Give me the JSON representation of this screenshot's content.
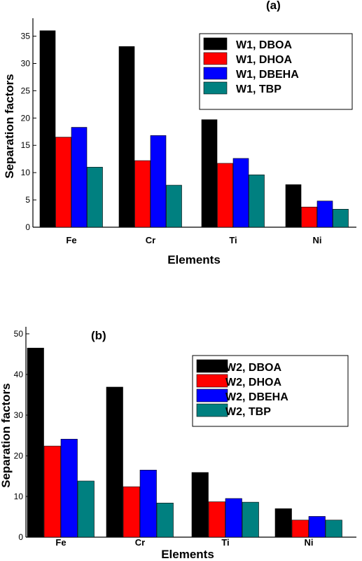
{
  "chart_data": [
    {
      "type": "bar",
      "panel_label": "(a)",
      "xlabel": "Elements",
      "ylabel": "Separation factors",
      "categories": [
        "Fe",
        "Cr",
        "Ti",
        "Ni"
      ],
      "ylim": [
        0,
        37
      ],
      "yticks": [
        0,
        5,
        10,
        15,
        20,
        25,
        30,
        35
      ],
      "legend_position": "top-right",
      "series": [
        {
          "name": "W1, DBOA",
          "color": "#000000",
          "values": [
            36.0,
            33.1,
            19.7,
            7.8
          ]
        },
        {
          "name": "W1, DHOA",
          "color": "#ff0000",
          "values": [
            16.5,
            12.2,
            11.7,
            3.7
          ]
        },
        {
          "name": "W1, DBEHA",
          "color": "#0000ff",
          "values": [
            18.3,
            16.8,
            12.6,
            4.8
          ]
        },
        {
          "name": "W1, TBP",
          "color": "#008080",
          "values": [
            11.0,
            7.7,
            9.6,
            3.3
          ]
        }
      ]
    },
    {
      "type": "bar",
      "panel_label": "(b)",
      "xlabel": "Elements",
      "ylabel": "Separation factors",
      "categories": [
        "Fe",
        "Cr",
        "Ti",
        "Ni"
      ],
      "ylim": [
        0,
        50
      ],
      "yticks": [
        0,
        10,
        20,
        30,
        40,
        50
      ],
      "legend_position": "top-right",
      "series": [
        {
          "name": "W2, DBOA",
          "color": "#000000",
          "values": [
            46.5,
            36.9,
            15.9,
            7.0
          ]
        },
        {
          "name": "W2, DHOA",
          "color": "#ff0000",
          "values": [
            22.4,
            12.4,
            8.7,
            4.2
          ]
        },
        {
          "name": "W2, DBEHA",
          "color": "#0000ff",
          "values": [
            24.1,
            16.5,
            9.5,
            5.1
          ]
        },
        {
          "name": "W2, TBP",
          "color": "#008080",
          "values": [
            13.8,
            8.4,
            8.6,
            4.2
          ]
        }
      ]
    }
  ]
}
